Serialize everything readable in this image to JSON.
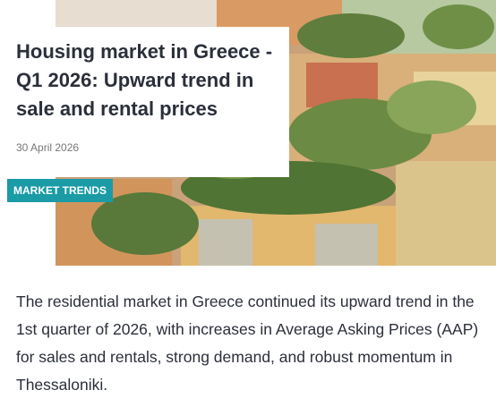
{
  "header": {
    "title": "Housing market in Greece - Q1 2026: Upward trend in sale and rental prices",
    "date": "30 April 2026"
  },
  "tag": "MARKET TRENDS",
  "body": "The residential market in Greece continued its upward trend in the 1st quarter of 2026, with increases in Average Asking Prices (AAP) for sales and rentals, strong demand, and robust momentum in Thessaloniki."
}
